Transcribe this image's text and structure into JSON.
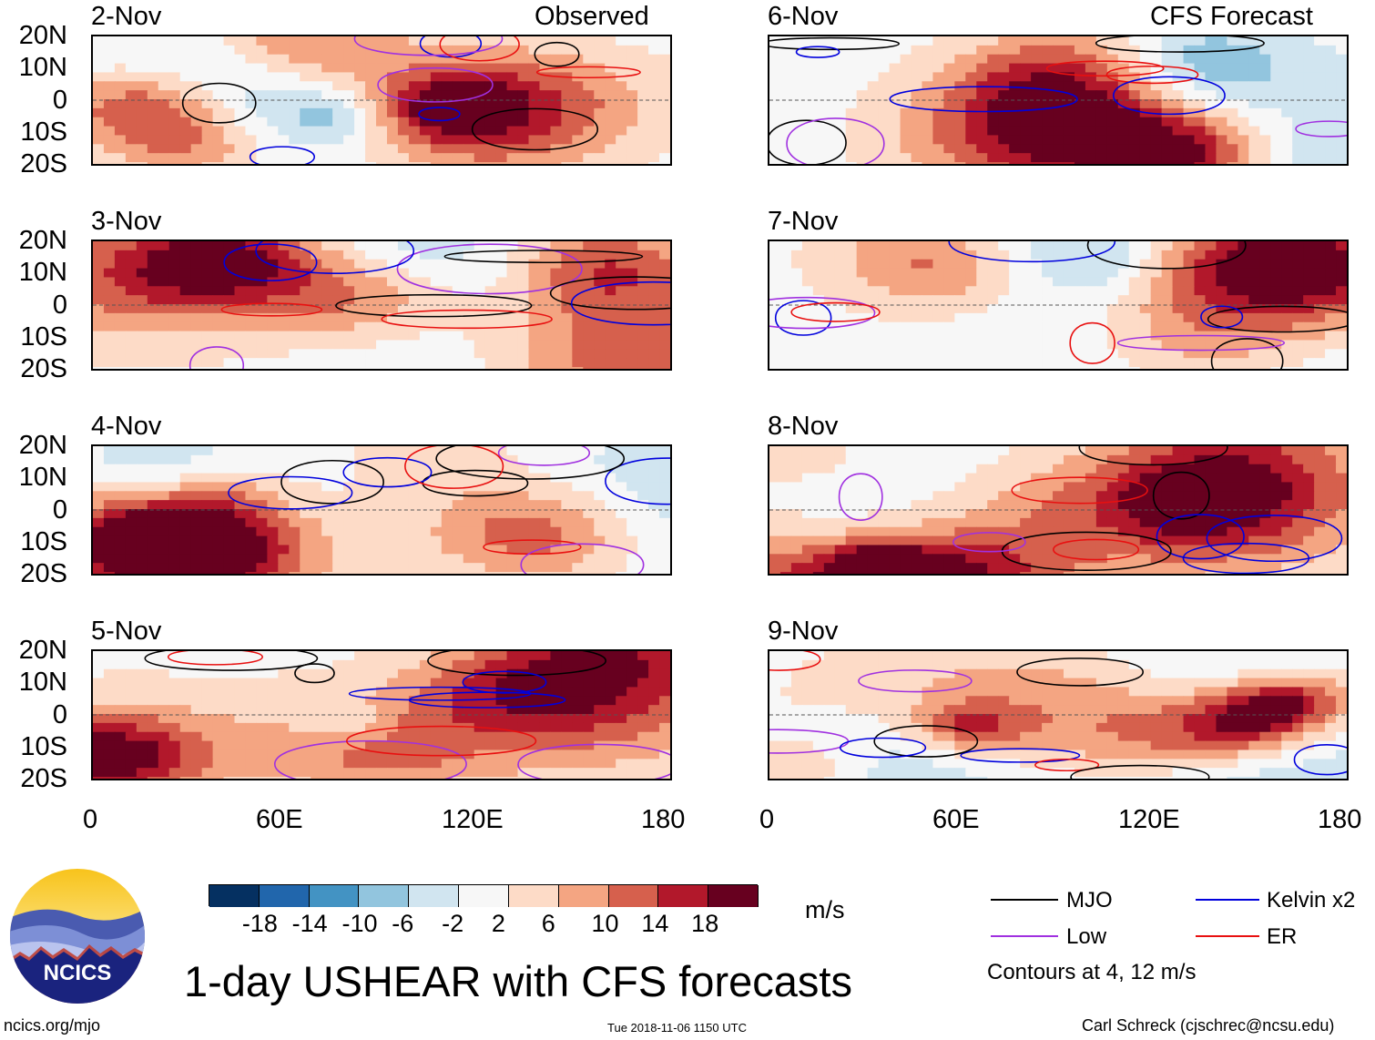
{
  "panels": [
    {
      "date": "2-Nov",
      "label": "Observed"
    },
    {
      "date": "3-Nov"
    },
    {
      "date": "4-Nov"
    },
    {
      "date": "5-Nov"
    },
    {
      "date": "6-Nov",
      "label": "CFS Forecast"
    },
    {
      "date": "7-Nov"
    },
    {
      "date": "8-Nov"
    },
    {
      "date": "9-Nov"
    }
  ],
  "chart_data": {
    "type": "heatmap",
    "title": "1-day USHEAR with CFS forecasts",
    "variable": "USHEAR",
    "units": "m/s",
    "x_ticks": [
      "0",
      "60E",
      "120E",
      "180"
    ],
    "y_ticks": [
      "20N",
      "10N",
      "0",
      "10S",
      "20S"
    ],
    "xlim": [
      0,
      180
    ],
    "ylim": [
      -20,
      20
    ],
    "colorbar": {
      "ticks": [
        "-18",
        "-14",
        "-10",
        "-6",
        "-2",
        "2",
        "6",
        "10",
        "14",
        "18"
      ],
      "colors": [
        "#053061",
        "#2166ac",
        "#4393c3",
        "#92c5de",
        "#d1e5f0",
        "#f7f7f7",
        "#fddbc7",
        "#f4a582",
        "#d6604d",
        "#b2182b",
        "#67001f"
      ]
    },
    "contour_legend": [
      {
        "name": "MJO",
        "color": "#000000"
      },
      {
        "name": "Kelvin x2",
        "color": "#0000dd"
      },
      {
        "name": "Low",
        "color": "#a030e0"
      },
      {
        "name": "ER",
        "color": "#e81010"
      }
    ],
    "contour_note": "Contours at 4, 12 m/s"
  },
  "footer": {
    "left": "ncics.org/mjo",
    "center": "Tue 2018-11-06 1150 UTC",
    "right": "Carl Schreck (cjschrec@ncsu.edu)"
  },
  "logo": {
    "text": "NCICS"
  }
}
